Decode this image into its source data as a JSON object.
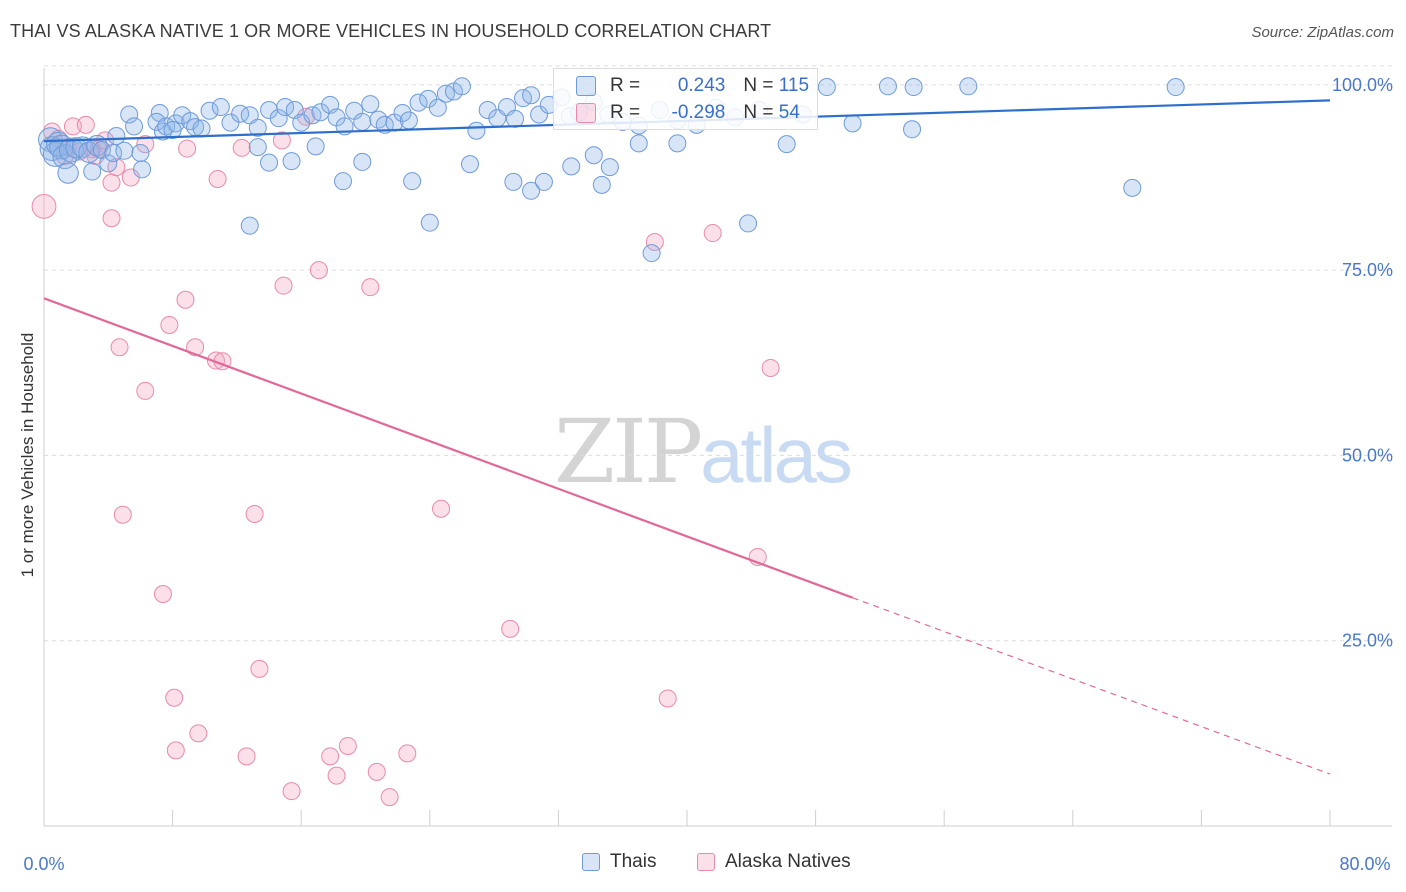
{
  "header": {
    "title": "THAI VS ALASKA NATIVE 1 OR MORE VEHICLES IN HOUSEHOLD CORRELATION CHART",
    "source": "Source: ZipAtlas.com"
  },
  "watermark": {
    "zip": "ZIP",
    "atlas": "atlas"
  },
  "legend_stats": [
    {
      "r_label": "R = ",
      "r_value": "0.243",
      "n_label": "N = ",
      "n_value": "115",
      "color": "#8db4e8"
    },
    {
      "r_label": "R = ",
      "r_value": "-0.298",
      "n_label": "N = ",
      "n_value": "54",
      "color": "#f3a7c0"
    }
  ],
  "colors": {
    "thais_fill": "rgba(141,180,232,0.35)",
    "thais_stroke": "#6f9bd8",
    "thais_line": "#2f6fcc",
    "alaska_fill": "rgba(243,167,192,0.35)",
    "alaska_stroke": "#e88aab",
    "alaska_line": "#e0699a",
    "grid": "#dcdcdc",
    "tick_label": "#4a78c8"
  },
  "chart_data": {
    "type": "scatter",
    "title": "THAI VS ALASKA NATIVE 1 OR MORE VEHICLES IN HOUSEHOLD CORRELATION CHART",
    "xlabel": "",
    "ylabel": "1 or more Vehicles in Household",
    "xlim": [
      0,
      80
    ],
    "ylim": [
      0,
      102
    ],
    "x_tick_labels": [
      "0.0%",
      "80.0%"
    ],
    "y_ticks": [
      25,
      50,
      75,
      100
    ],
    "y_tick_labels": [
      "25.0%",
      "50.0%",
      "75.0%",
      "100.0%"
    ],
    "grid": true,
    "legend_position": "bottom-center",
    "series": [
      {
        "name": "Thais",
        "trend": {
          "x": [
            0,
            80
          ],
          "y": [
            92.4,
            97.9
          ],
          "extended_dashed": false
        },
        "points": [
          [
            0.4,
            92.6
          ],
          [
            0.5,
            91.4
          ],
          [
            0.7,
            90.6
          ],
          [
            0.9,
            92.0
          ],
          [
            1.1,
            91.6
          ],
          [
            1.3,
            90.3
          ],
          [
            1.5,
            88.1
          ],
          [
            1.7,
            91.2
          ],
          [
            2.0,
            91.5
          ],
          [
            2.4,
            91.6
          ],
          [
            2.8,
            90.9
          ],
          [
            3.0,
            88.3
          ],
          [
            3.3,
            91.8
          ],
          [
            3.6,
            91.2
          ],
          [
            4.0,
            89.4
          ],
          [
            4.3,
            90.8
          ],
          [
            4.5,
            93.1
          ],
          [
            5.0,
            91.1
          ],
          [
            5.3,
            96.0
          ],
          [
            5.6,
            94.4
          ],
          [
            6.0,
            90.8
          ],
          [
            6.1,
            88.6
          ],
          [
            7.2,
            96.2
          ],
          [
            7.0,
            95.0
          ],
          [
            7.4,
            93.7
          ],
          [
            7.6,
            94.4
          ],
          [
            8.2,
            94.8
          ],
          [
            8.6,
            95.9
          ],
          [
            8.0,
            93.9
          ],
          [
            9.1,
            95.1
          ],
          [
            9.4,
            94.3
          ],
          [
            9.8,
            94.1
          ],
          [
            10.3,
            96.5
          ],
          [
            11.0,
            97.0
          ],
          [
            11.6,
            94.9
          ],
          [
            12.2,
            96.1
          ],
          [
            12.8,
            95.9
          ],
          [
            13.3,
            94.2
          ],
          [
            14.0,
            96.6
          ],
          [
            14.6,
            95.5
          ],
          [
            15.0,
            97.0
          ],
          [
            15.6,
            96.6
          ],
          [
            16.0,
            94.9
          ],
          [
            16.7,
            95.9
          ],
          [
            17.2,
            96.3
          ],
          [
            17.8,
            97.3
          ],
          [
            18.2,
            95.6
          ],
          [
            18.7,
            94.4
          ],
          [
            19.3,
            96.5
          ],
          [
            19.8,
            95.0
          ],
          [
            20.3,
            97.4
          ],
          [
            20.8,
            95.3
          ],
          [
            21.2,
            94.6
          ],
          [
            21.8,
            94.9
          ],
          [
            22.3,
            96.2
          ],
          [
            22.7,
            95.2
          ],
          [
            23.3,
            97.6
          ],
          [
            23.9,
            98.1
          ],
          [
            24.5,
            96.9
          ],
          [
            25.0,
            98.8
          ],
          [
            25.5,
            99.1
          ],
          [
            26.0,
            99.8
          ],
          [
            26.9,
            93.8
          ],
          [
            27.6,
            96.6
          ],
          [
            28.2,
            95.5
          ],
          [
            28.8,
            97.0
          ],
          [
            29.3,
            95.4
          ],
          [
            29.8,
            98.2
          ],
          [
            30.3,
            98.6
          ],
          [
            30.8,
            96.0
          ],
          [
            31.4,
            97.3
          ],
          [
            32.2,
            98.3
          ],
          [
            32.7,
            95.8
          ],
          [
            33.3,
            96.3
          ],
          [
            34.2,
            97.7
          ],
          [
            35.1,
            96.0
          ],
          [
            36.0,
            95.0
          ],
          [
            37.0,
            94.5
          ],
          [
            38.3,
            96.6
          ],
          [
            39.4,
            95.2
          ],
          [
            40.6,
            94.6
          ],
          [
            41.8,
            96.9
          ],
          [
            43.0,
            95.6
          ],
          [
            44.5,
            96.6
          ],
          [
            47.2,
            96.0
          ],
          [
            48.7,
            99.7
          ],
          [
            50.3,
            94.8
          ],
          [
            52.5,
            99.8
          ],
          [
            54.1,
            99.7
          ],
          [
            57.5,
            99.8
          ],
          [
            13.3,
            91.6
          ],
          [
            14.0,
            89.5
          ],
          [
            15.4,
            89.7
          ],
          [
            16.9,
            91.7
          ],
          [
            18.6,
            87.0
          ],
          [
            19.8,
            89.6
          ],
          [
            22.9,
            87.0
          ],
          [
            26.5,
            89.3
          ],
          [
            29.2,
            86.9
          ],
          [
            30.3,
            85.7
          ],
          [
            31.1,
            86.9
          ],
          [
            32.8,
            89.0
          ],
          [
            34.2,
            90.5
          ],
          [
            34.7,
            86.5
          ],
          [
            35.2,
            88.9
          ],
          [
            37.0,
            92.1
          ],
          [
            39.4,
            92.1
          ],
          [
            43.8,
            81.3
          ],
          [
            46.2,
            92.0
          ],
          [
            54.0,
            94.0
          ],
          [
            67.7,
            86.1
          ],
          [
            70.4,
            99.7
          ],
          [
            12.8,
            81.0
          ],
          [
            24.0,
            81.4
          ],
          [
            37.8,
            77.3
          ]
        ],
        "sizes": [
          14,
          14,
          14,
          14,
          14,
          14,
          12,
          14,
          12,
          12,
          12,
          10,
          12,
          10,
          10,
          10,
          10,
          10,
          10,
          10,
          10,
          10,
          10,
          10,
          10,
          10,
          10,
          10,
          10,
          10,
          10,
          10,
          10,
          10,
          10,
          10,
          10,
          10,
          10,
          10,
          10,
          10,
          10,
          10,
          10,
          10,
          10,
          10,
          10,
          10,
          10,
          10,
          10,
          10,
          10,
          10,
          10,
          10,
          10,
          10,
          10,
          10,
          10,
          10,
          10,
          10,
          10,
          10,
          10,
          10,
          10,
          10,
          10,
          10,
          10,
          10,
          10,
          10,
          10,
          10,
          10,
          10,
          10,
          10,
          10,
          10,
          10,
          10,
          10,
          10,
          10,
          10,
          10,
          10,
          10,
          10,
          10,
          10,
          10,
          10,
          10,
          10,
          10,
          10,
          10,
          10,
          10,
          10,
          10,
          10,
          10,
          10,
          10,
          10,
          10
        ]
      },
      {
        "name": "Alaska Natives",
        "trend": {
          "x": [
            0,
            50.3
          ],
          "y": [
            71.2,
            30.8
          ],
          "dashed_extension_to": [
            80.0,
            7.0
          ]
        },
        "points": [
          [
            0.0,
            83.6
          ],
          [
            0.5,
            93.7
          ],
          [
            0.9,
            92.7
          ],
          [
            1.3,
            90.4
          ],
          [
            1.8,
            94.4
          ],
          [
            2.6,
            94.6
          ],
          [
            3.0,
            91.3
          ],
          [
            3.2,
            90.4
          ],
          [
            3.4,
            91.3
          ],
          [
            3.8,
            92.5
          ],
          [
            4.2,
            86.8
          ],
          [
            4.5,
            88.9
          ],
          [
            5.4,
            87.5
          ],
          [
            4.2,
            82.0
          ],
          [
            10.8,
            87.3
          ],
          [
            16.3,
            95.7
          ],
          [
            14.8,
            92.5
          ],
          [
            8.9,
            91.4
          ],
          [
            41.6,
            80.0
          ],
          [
            38.0,
            78.8
          ],
          [
            17.1,
            75.0
          ],
          [
            14.9,
            72.9
          ],
          [
            20.3,
            72.7
          ],
          [
            8.8,
            71.0
          ],
          [
            7.8,
            67.6
          ],
          [
            4.7,
            64.6
          ],
          [
            9.4,
            64.6
          ],
          [
            10.7,
            62.8
          ],
          [
            11.1,
            62.7
          ],
          [
            45.2,
            61.8
          ],
          [
            6.3,
            58.7
          ],
          [
            4.9,
            42.0
          ],
          [
            13.1,
            42.1
          ],
          [
            24.7,
            42.8
          ],
          [
            44.4,
            36.3
          ],
          [
            7.4,
            31.3
          ],
          [
            29.0,
            26.6
          ],
          [
            13.4,
            21.2
          ],
          [
            8.1,
            17.3
          ],
          [
            38.8,
            17.2
          ],
          [
            9.6,
            12.5
          ],
          [
            8.2,
            10.2
          ],
          [
            12.6,
            9.4
          ],
          [
            17.8,
            9.4
          ],
          [
            18.9,
            10.8
          ],
          [
            22.6,
            9.8
          ],
          [
            18.2,
            6.8
          ],
          [
            20.7,
            7.3
          ],
          [
            15.4,
            4.7
          ],
          [
            21.5,
            3.9
          ],
          [
            1.5,
            91.6
          ],
          [
            2.2,
            91.0
          ],
          [
            12.3,
            91.5
          ],
          [
            6.3,
            92.0
          ]
        ],
        "sizes": [
          14,
          10,
          10,
          10,
          10,
          10,
          10,
          10,
          10,
          10,
          10,
          10,
          10,
          10,
          10,
          10,
          10,
          10,
          10,
          10,
          10,
          10,
          10,
          10,
          10,
          10,
          10,
          10,
          10,
          10,
          10,
          10,
          10,
          10,
          10,
          10,
          10,
          10,
          10,
          10,
          10,
          10,
          10,
          10,
          10,
          10,
          10,
          10,
          10,
          10,
          10,
          10,
          10,
          10
        ]
      }
    ]
  }
}
